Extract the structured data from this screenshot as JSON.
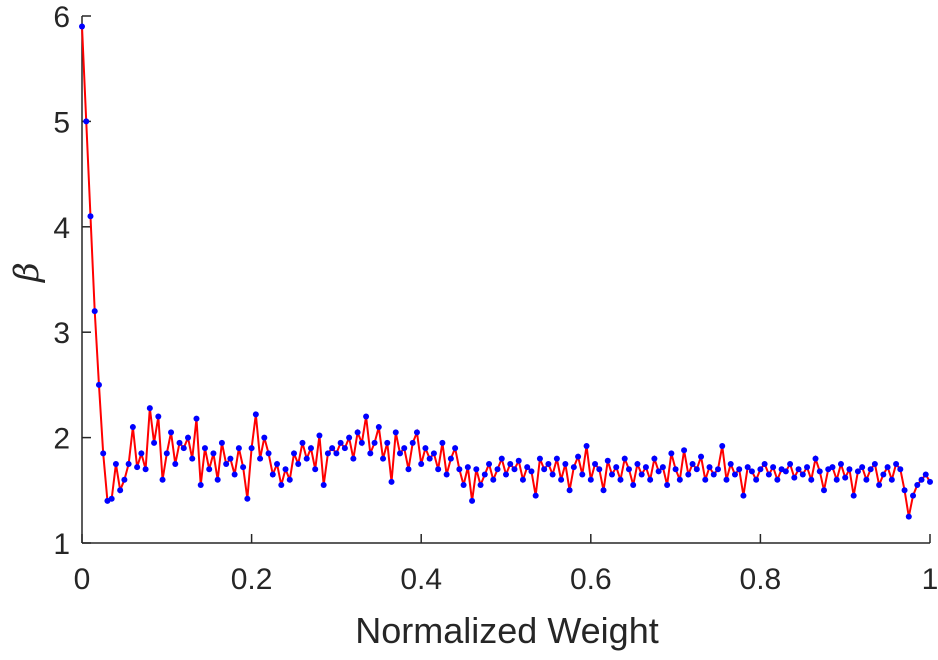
{
  "chart_data": {
    "type": "line",
    "xlabel": "Normalized Weight",
    "ylabel": "β",
    "xlim": [
      0,
      1
    ],
    "ylim": [
      1,
      6
    ],
    "xticks": [
      0,
      0.2,
      0.4,
      0.6,
      0.8,
      1
    ],
    "yticks": [
      1,
      2,
      3,
      4,
      5,
      6
    ],
    "grid": false,
    "x": [
      0,
      0.005,
      0.01,
      0.015,
      0.02,
      0.025,
      0.03,
      0.035,
      0.04,
      0.045,
      0.05,
      0.055,
      0.06,
      0.065,
      0.07,
      0.075,
      0.08,
      0.085,
      0.09,
      0.095,
      0.1,
      0.105,
      0.11,
      0.115,
      0.12,
      0.125,
      0.13,
      0.135,
      0.14,
      0.145,
      0.15,
      0.155,
      0.16,
      0.165,
      0.17,
      0.175,
      0.18,
      0.185,
      0.19,
      0.195,
      0.2,
      0.205,
      0.21,
      0.215,
      0.22,
      0.225,
      0.23,
      0.235,
      0.24,
      0.245,
      0.25,
      0.255,
      0.26,
      0.265,
      0.27,
      0.275,
      0.28,
      0.285,
      0.29,
      0.295,
      0.3,
      0.305,
      0.31,
      0.315,
      0.32,
      0.325,
      0.33,
      0.335,
      0.34,
      0.345,
      0.35,
      0.355,
      0.36,
      0.365,
      0.37,
      0.375,
      0.38,
      0.385,
      0.39,
      0.395,
      0.4,
      0.405,
      0.41,
      0.415,
      0.42,
      0.425,
      0.43,
      0.435,
      0.44,
      0.445,
      0.45,
      0.455,
      0.46,
      0.465,
      0.47,
      0.475,
      0.48,
      0.485,
      0.49,
      0.495,
      0.5,
      0.505,
      0.51,
      0.515,
      0.52,
      0.525,
      0.53,
      0.535,
      0.54,
      0.545,
      0.55,
      0.555,
      0.56,
      0.565,
      0.57,
      0.575,
      0.58,
      0.585,
      0.59,
      0.595,
      0.6,
      0.605,
      0.61,
      0.615,
      0.62,
      0.625,
      0.63,
      0.635,
      0.64,
      0.645,
      0.65,
      0.655,
      0.66,
      0.665,
      0.67,
      0.675,
      0.68,
      0.685,
      0.69,
      0.695,
      0.7,
      0.705,
      0.71,
      0.715,
      0.72,
      0.725,
      0.73,
      0.735,
      0.74,
      0.745,
      0.75,
      0.755,
      0.76,
      0.765,
      0.77,
      0.775,
      0.78,
      0.785,
      0.79,
      0.795,
      0.8,
      0.805,
      0.81,
      0.815,
      0.82,
      0.825,
      0.83,
      0.835,
      0.84,
      0.845,
      0.85,
      0.855,
      0.86,
      0.865,
      0.87,
      0.875,
      0.88,
      0.885,
      0.89,
      0.895,
      0.9,
      0.905,
      0.91,
      0.915,
      0.92,
      0.925,
      0.93,
      0.935,
      0.94,
      0.945,
      0.95,
      0.955,
      0.96,
      0.965,
      0.97,
      0.975,
      0.98,
      0.985,
      0.99,
      0.995,
      1
    ],
    "series": [
      {
        "color": "#ff0000",
        "marker_color": "#0000ff",
        "values": [
          5.9,
          5.0,
          4.1,
          3.2,
          2.5,
          1.85,
          1.4,
          1.42,
          1.75,
          1.5,
          1.6,
          1.75,
          2.1,
          1.72,
          1.85,
          1.7,
          2.28,
          1.95,
          2.2,
          1.6,
          1.85,
          2.05,
          1.75,
          1.95,
          1.9,
          2.0,
          1.8,
          2.18,
          1.55,
          1.9,
          1.7,
          1.85,
          1.6,
          1.95,
          1.75,
          1.8,
          1.65,
          1.9,
          1.72,
          1.42,
          1.9,
          2.22,
          1.8,
          2.0,
          1.85,
          1.65,
          1.75,
          1.55,
          1.7,
          1.6,
          1.85,
          1.75,
          1.95,
          1.8,
          1.9,
          1.7,
          2.02,
          1.55,
          1.85,
          1.9,
          1.85,
          1.95,
          1.9,
          2.0,
          1.8,
          2.05,
          1.95,
          2.2,
          1.85,
          1.95,
          2.1,
          1.8,
          1.95,
          1.58,
          2.05,
          1.85,
          1.9,
          1.7,
          1.95,
          2.05,
          1.75,
          1.9,
          1.8,
          1.85,
          1.7,
          1.95,
          1.65,
          1.8,
          1.9,
          1.7,
          1.55,
          1.72,
          1.4,
          1.7,
          1.55,
          1.65,
          1.75,
          1.6,
          1.7,
          1.8,
          1.65,
          1.75,
          1.7,
          1.78,
          1.6,
          1.72,
          1.68,
          1.45,
          1.8,
          1.7,
          1.75,
          1.65,
          1.8,
          1.6,
          1.75,
          1.5,
          1.72,
          1.82,
          1.65,
          1.92,
          1.6,
          1.75,
          1.7,
          1.5,
          1.78,
          1.65,
          1.72,
          1.6,
          1.8,
          1.7,
          1.55,
          1.75,
          1.65,
          1.72,
          1.6,
          1.8,
          1.68,
          1.72,
          1.55,
          1.85,
          1.7,
          1.6,
          1.88,
          1.65,
          1.75,
          1.7,
          1.82,
          1.6,
          1.72,
          1.65,
          1.7,
          1.92,
          1.6,
          1.75,
          1.65,
          1.7,
          1.45,
          1.72,
          1.68,
          1.6,
          1.7,
          1.75,
          1.65,
          1.72,
          1.6,
          1.7,
          1.68,
          1.75,
          1.62,
          1.7,
          1.65,
          1.72,
          1.6,
          1.8,
          1.68,
          1.5,
          1.7,
          1.72,
          1.6,
          1.75,
          1.62,
          1.7,
          1.45,
          1.68,
          1.72,
          1.6,
          1.7,
          1.75,
          1.55,
          1.65,
          1.72,
          1.6,
          1.75,
          1.7,
          1.5,
          1.25,
          1.45,
          1.55,
          1.6,
          1.65,
          1.58
        ]
      }
    ]
  }
}
